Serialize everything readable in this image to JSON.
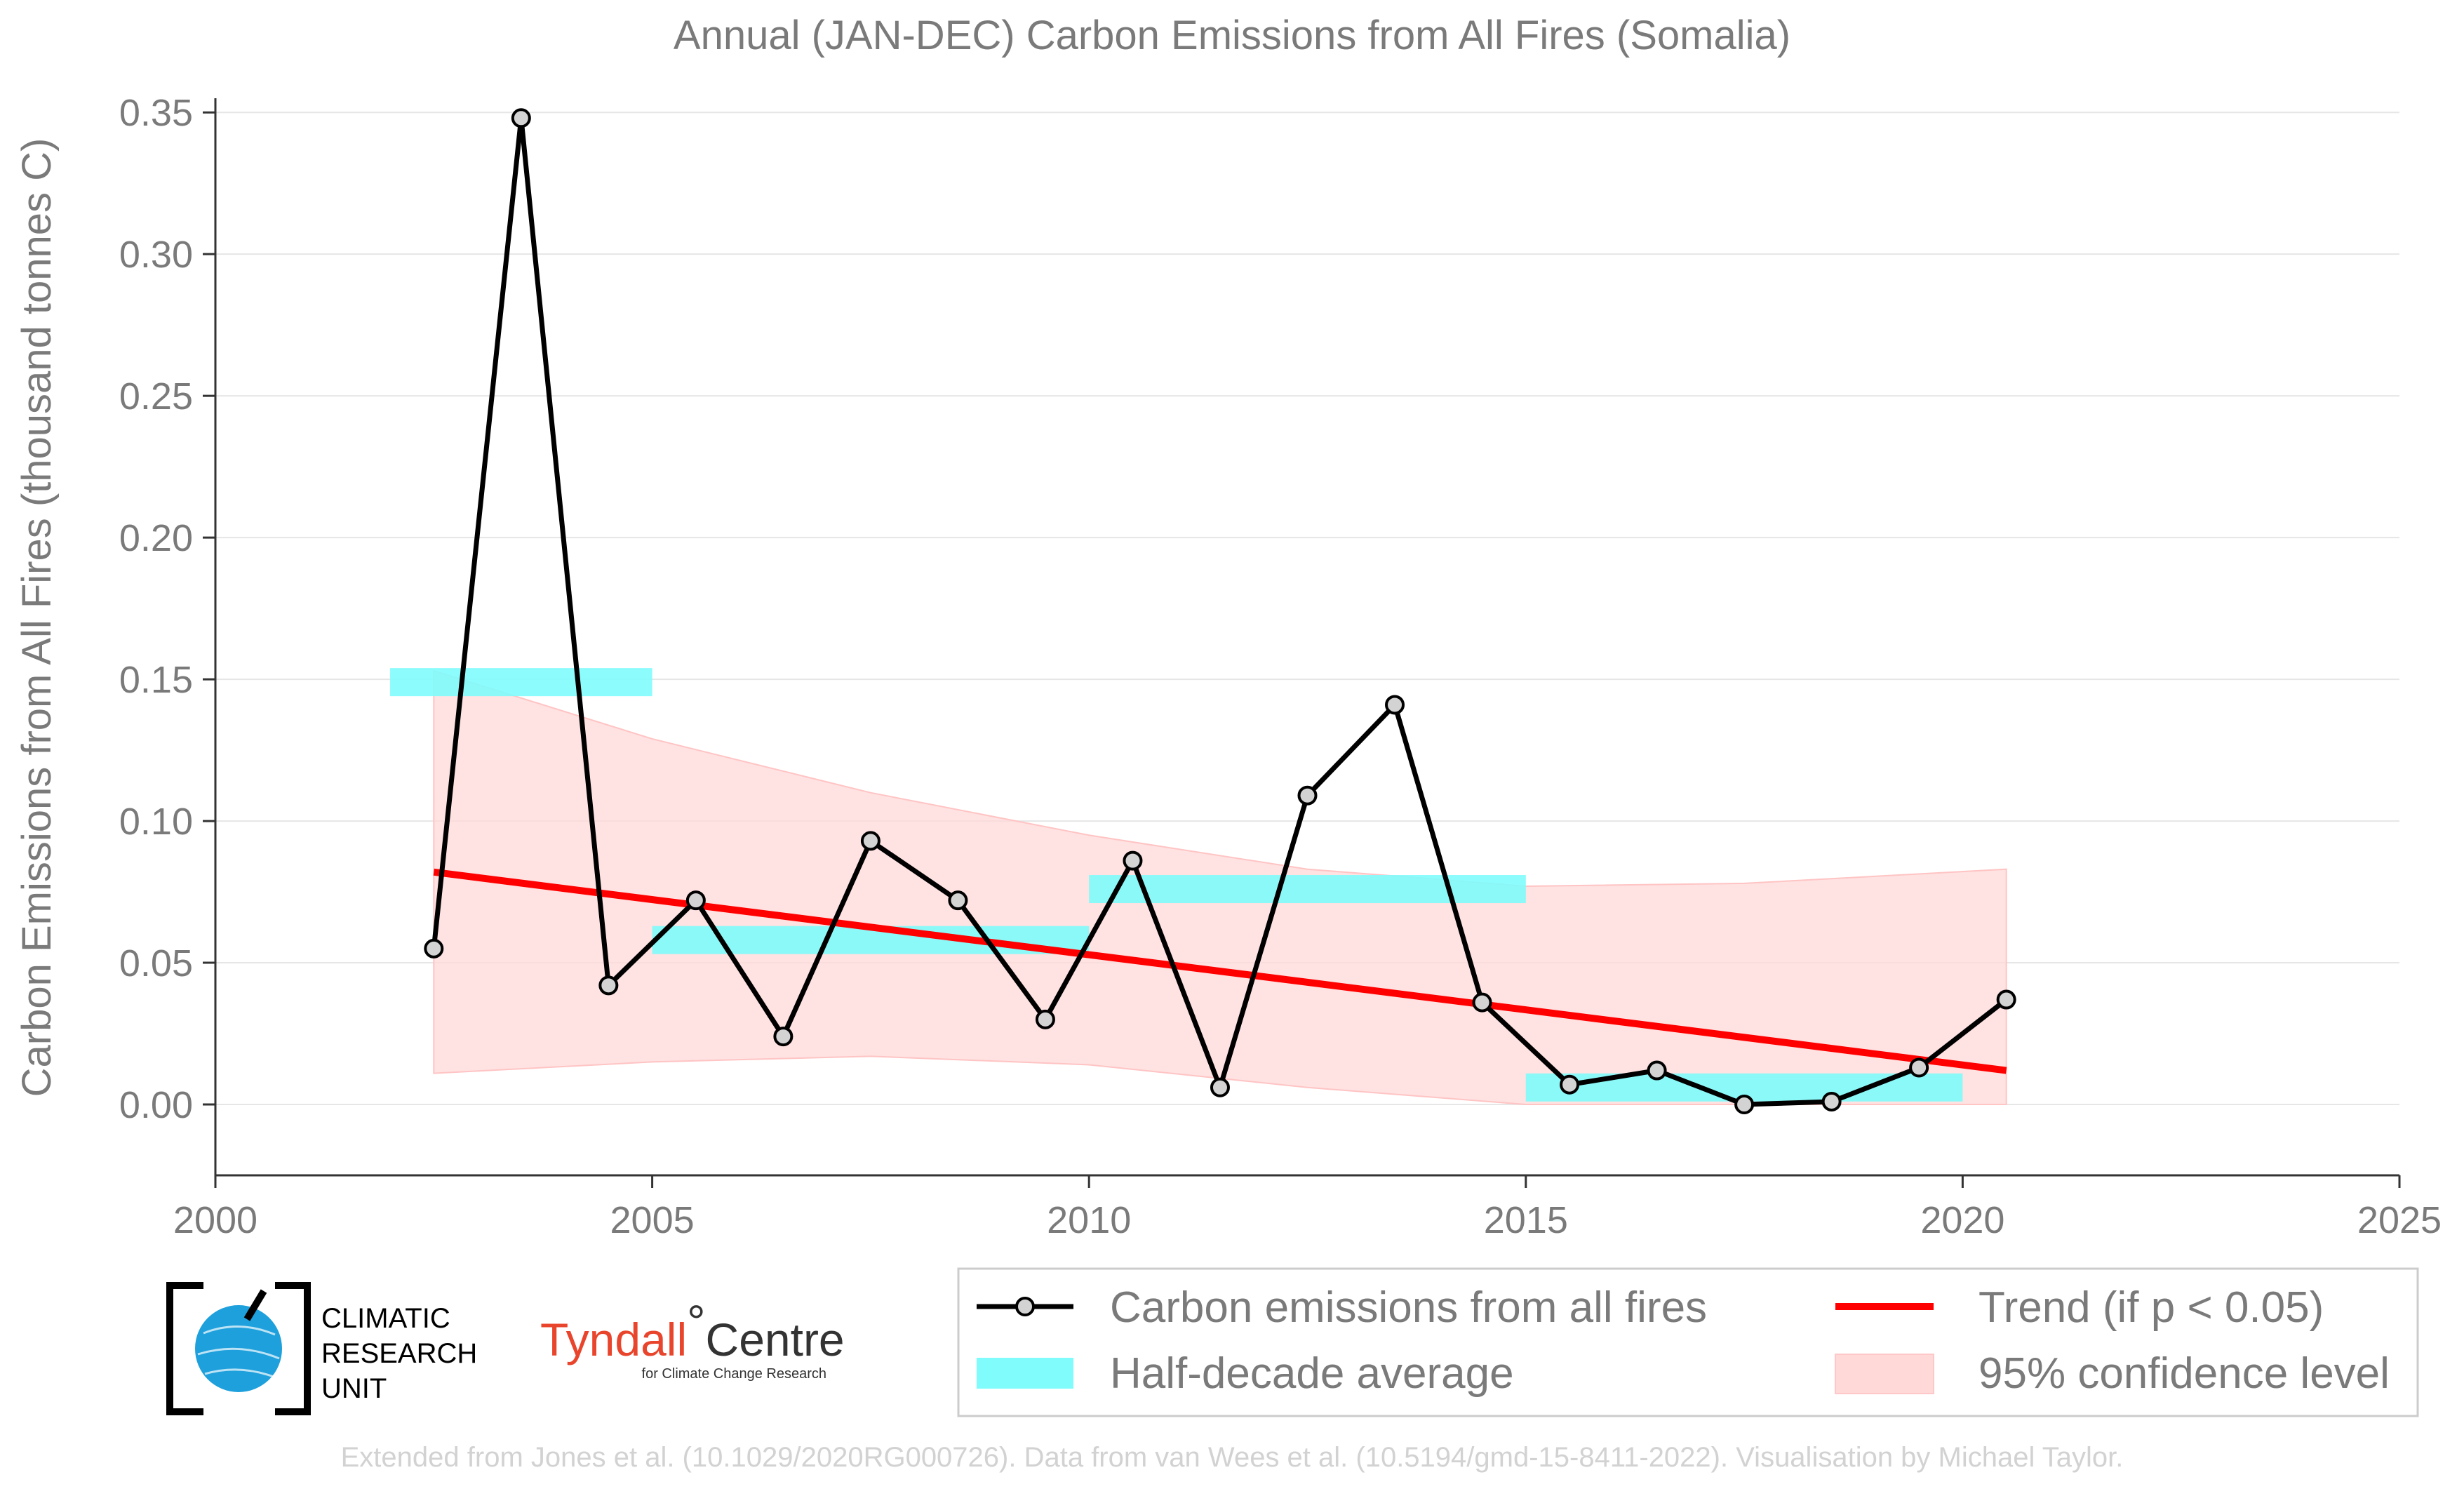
{
  "chart_data": {
    "type": "line",
    "title": "Annual (JAN-DEC) Carbon Emissions from All Fires (Somalia)",
    "xlabel": "",
    "ylabel": "Carbon Emissions from All Fires (thousand tonnes C)",
    "xlim": [
      2000,
      2025
    ],
    "ylim": [
      -0.025,
      0.355
    ],
    "x_ticks": [
      "2000",
      "2005",
      "2010",
      "2015",
      "2020",
      "2025"
    ],
    "y_ticks": [
      "0.00",
      "0.05",
      "0.10",
      "0.15",
      "0.20",
      "0.25",
      "0.30",
      "0.35"
    ],
    "grid": true,
    "legend_position": "bottom-right",
    "series": [
      {
        "name": "Carbon emissions from all fires",
        "color": "#000000",
        "marker_fill": "#d3d3d3",
        "x": [
          2002.5,
          2003.5,
          2004.5,
          2005.5,
          2006.5,
          2007.5,
          2008.5,
          2009.5,
          2010.5,
          2011.5,
          2012.5,
          2013.5,
          2014.5,
          2015.5,
          2016.5,
          2017.5,
          2018.5,
          2019.5,
          2020.5
        ],
        "y": [
          0.055,
          0.348,
          0.042,
          0.072,
          0.024,
          0.093,
          0.072,
          0.03,
          0.086,
          0.006,
          0.109,
          0.141,
          0.036,
          0.007,
          0.012,
          0.0,
          0.001,
          0.013,
          0.037
        ]
      },
      {
        "name": "Half-decade average",
        "color": "#80fcfc",
        "segments": [
          {
            "x0": 2002,
            "x1": 2005,
            "y": 0.149
          },
          {
            "x0": 2005,
            "x1": 2010,
            "y": 0.058
          },
          {
            "x0": 2010,
            "x1": 2015,
            "y": 0.076
          },
          {
            "x0": 2015,
            "x1": 2020,
            "y": 0.006
          }
        ]
      },
      {
        "name": "Trend (if p < 0.05)",
        "color": "#ff0000",
        "x": [
          2002.5,
          2020.5
        ],
        "y": [
          0.082,
          0.012
        ]
      },
      {
        "name": "95% confidence level",
        "color": "#ffd8d8",
        "x": [
          2002.5,
          2005,
          2007.5,
          2010,
          2012.5,
          2015,
          2017.5,
          2020.5
        ],
        "upper": [
          0.153,
          0.129,
          0.11,
          0.095,
          0.083,
          0.077,
          0.078,
          0.083
        ],
        "lower": [
          0.011,
          0.015,
          0.017,
          0.014,
          0.006,
          -0.003,
          -0.006,
          -0.004
        ]
      }
    ]
  },
  "legend": {
    "items": [
      {
        "label": "Carbon emissions from all fires",
        "icon": "line-with-marker"
      },
      {
        "label": "Trend (if p < 0.05)",
        "icon": "red-line"
      },
      {
        "label": "Half-decade average",
        "icon": "cyan-patch"
      },
      {
        "label": "95% confidence level",
        "icon": "pink-patch"
      }
    ]
  },
  "logos": {
    "cru": {
      "line1": "CLIMATIC",
      "line2": "RESEARCH",
      "line3": "UNIT",
      "icon": "globe-icon"
    },
    "tyndall": {
      "name": "Tyndall",
      "degree": "°",
      "centre": "Centre",
      "subtitle": "for Climate Change Research"
    }
  },
  "credit": "Extended from Jones et al. (10.1029/2020RG000726). Data from van Wees et al. (10.5194/gmd-15-8411-2022). Visualisation by Michael Taylor."
}
